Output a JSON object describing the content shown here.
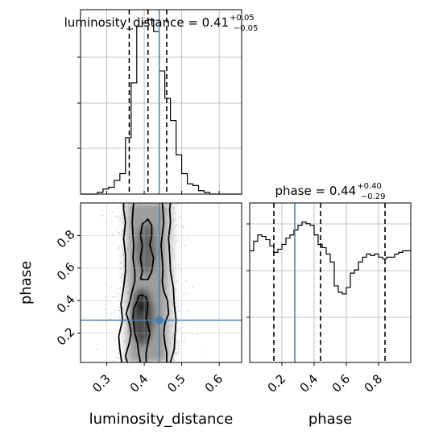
{
  "chart_data": [
    {
      "type": "histogram",
      "parameter": "luminosity_distance",
      "title_prefix": "luminosity_distance = ",
      "title_value": "0.41",
      "title_upper": "+0.05",
      "title_lower": "−0.05",
      "xlim": [
        0.23,
        0.66
      ],
      "bins": [
        0.23,
        0.245,
        0.26,
        0.275,
        0.29,
        0.305,
        0.32,
        0.335,
        0.35,
        0.365,
        0.38,
        0.395,
        0.41,
        0.425,
        0.44,
        0.455,
        0.47,
        0.485,
        0.5,
        0.515,
        0.53,
        0.545,
        0.56,
        0.575,
        0.59,
        0.605,
        0.62,
        0.635,
        0.65,
        0.66
      ],
      "counts": [
        0,
        0,
        0,
        1,
        3,
        4,
        8,
        12,
        33,
        65,
        98,
        100,
        102,
        95,
        72,
        56,
        43,
        23,
        12,
        6,
        5,
        2,
        1,
        0,
        0,
        0,
        0,
        0,
        0
      ],
      "quantiles": [
        0.36,
        0.41,
        0.46
      ],
      "truth": 0.44,
      "grid": true
    },
    {
      "type": "histogram",
      "parameter": "phase",
      "title_prefix": "phase = ",
      "title_value": "0.44",
      "title_upper": "+0.40",
      "title_lower": "−0.29",
      "xlim": [
        0.0,
        1.0
      ],
      "bins": [
        0.0,
        0.025,
        0.05,
        0.075,
        0.1,
        0.125,
        0.15,
        0.175,
        0.2,
        0.225,
        0.25,
        0.275,
        0.3,
        0.325,
        0.35,
        0.375,
        0.4,
        0.425,
        0.45,
        0.475,
        0.5,
        0.525,
        0.55,
        0.575,
        0.6,
        0.625,
        0.65,
        0.675,
        0.7,
        0.725,
        0.75,
        0.775,
        0.8,
        0.825,
        0.85,
        0.875,
        0.9,
        0.925,
        0.95,
        0.975,
        1.0
      ],
      "counts": [
        70,
        76,
        80,
        79,
        77,
        73,
        69,
        71,
        74,
        78,
        80,
        83,
        86,
        88,
        87,
        86,
        80,
        74,
        72,
        68,
        63,
        48,
        44,
        43,
        47,
        56,
        58,
        63,
        66,
        68,
        67,
        68,
        66,
        65,
        66,
        66,
        68,
        69,
        70,
        70
      ],
      "quantiles": [
        0.15,
        0.44,
        0.84
      ],
      "truth": 0.28,
      "grid": true
    },
    {
      "type": "scatter",
      "x_parameter": "luminosity_distance",
      "y_parameter": "phase",
      "xlabel": "luminosity_distance",
      "ylabel": "phase",
      "xlim": [
        0.23,
        0.66
      ],
      "ylim": [
        0.02,
        1.0
      ],
      "xticks": [
        "0.3",
        "0.4",
        "0.5",
        "0.6"
      ],
      "yticks": [
        "0.2",
        "0.4",
        "0.6",
        "0.8"
      ],
      "x_mean": 0.41,
      "x_sd": 0.035,
      "y_range": [
        0.02,
        1.0
      ],
      "contours": [
        [
          [
            0.39,
            0.02
          ],
          [
            0.385,
            0.08
          ],
          [
            0.382,
            0.14
          ],
          [
            0.375,
            0.2
          ],
          [
            0.372,
            0.26
          ],
          [
            0.37,
            0.3
          ],
          [
            0.372,
            0.35
          ],
          [
            0.382,
            0.4
          ],
          [
            0.385,
            0.43
          ],
          [
            0.395,
            0.435
          ],
          [
            0.405,
            0.42
          ],
          [
            0.41,
            0.38
          ],
          [
            0.408,
            0.33
          ],
          [
            0.405,
            0.29
          ],
          [
            0.41,
            0.25
          ],
          [
            0.415,
            0.2
          ],
          [
            0.41,
            0.14
          ],
          [
            0.405,
            0.08
          ],
          [
            0.405,
            0.02
          ]
        ],
        [
          [
            0.39,
            0.53
          ],
          [
            0.395,
            0.58
          ],
          [
            0.39,
            0.66
          ],
          [
            0.395,
            0.74
          ],
          [
            0.39,
            0.8
          ],
          [
            0.395,
            0.87
          ],
          [
            0.41,
            0.9
          ],
          [
            0.42,
            0.86
          ],
          [
            0.42,
            0.8
          ],
          [
            0.415,
            0.74
          ],
          [
            0.425,
            0.66
          ],
          [
            0.42,
            0.58
          ],
          [
            0.41,
            0.53
          ],
          [
            0.39,
            0.53
          ]
        ],
        [
          [
            0.355,
            0.02
          ],
          [
            0.35,
            0.06
          ],
          [
            0.36,
            0.14
          ],
          [
            0.365,
            0.2
          ],
          [
            0.36,
            0.26
          ],
          [
            0.352,
            0.32
          ],
          [
            0.362,
            0.4
          ],
          [
            0.368,
            0.46
          ],
          [
            0.375,
            0.52
          ],
          [
            0.375,
            0.58
          ],
          [
            0.37,
            0.66
          ],
          [
            0.372,
            0.74
          ],
          [
            0.37,
            0.8
          ],
          [
            0.368,
            0.88
          ],
          [
            0.37,
            0.96
          ],
          [
            0.372,
            1.0
          ]
        ],
        [
          [
            0.46,
            0.02
          ],
          [
            0.46,
            0.08
          ],
          [
            0.455,
            0.14
          ],
          [
            0.452,
            0.2
          ],
          [
            0.455,
            0.26
          ],
          [
            0.465,
            0.32
          ],
          [
            0.462,
            0.4
          ],
          [
            0.452,
            0.46
          ],
          [
            0.448,
            0.52
          ],
          [
            0.45,
            0.58
          ],
          [
            0.448,
            0.66
          ],
          [
            0.445,
            0.74
          ],
          [
            0.448,
            0.8
          ],
          [
            0.452,
            0.88
          ],
          [
            0.45,
            0.96
          ],
          [
            0.448,
            1.0
          ]
        ],
        [
          [
            0.34,
            0.02
          ],
          [
            0.335,
            0.1
          ],
          [
            0.332,
            0.18
          ],
          [
            0.342,
            0.28
          ],
          [
            0.338,
            0.38
          ],
          [
            0.345,
            0.48
          ],
          [
            0.35,
            0.58
          ],
          [
            0.35,
            0.68
          ],
          [
            0.345,
            0.78
          ],
          [
            0.35,
            0.88
          ],
          [
            0.345,
            0.96
          ],
          [
            0.345,
            1.0
          ]
        ],
        [
          [
            0.47,
            0.02
          ],
          [
            0.48,
            0.1
          ],
          [
            0.482,
            0.18
          ],
          [
            0.485,
            0.28
          ],
          [
            0.48,
            0.38
          ],
          [
            0.478,
            0.48
          ],
          [
            0.47,
            0.58
          ],
          [
            0.468,
            0.68
          ],
          [
            0.465,
            0.78
          ],
          [
            0.47,
            0.88
          ],
          [
            0.468,
            0.96
          ],
          [
            0.47,
            1.0
          ]
        ]
      ],
      "truth": [
        0.44,
        0.28
      ]
    }
  ]
}
